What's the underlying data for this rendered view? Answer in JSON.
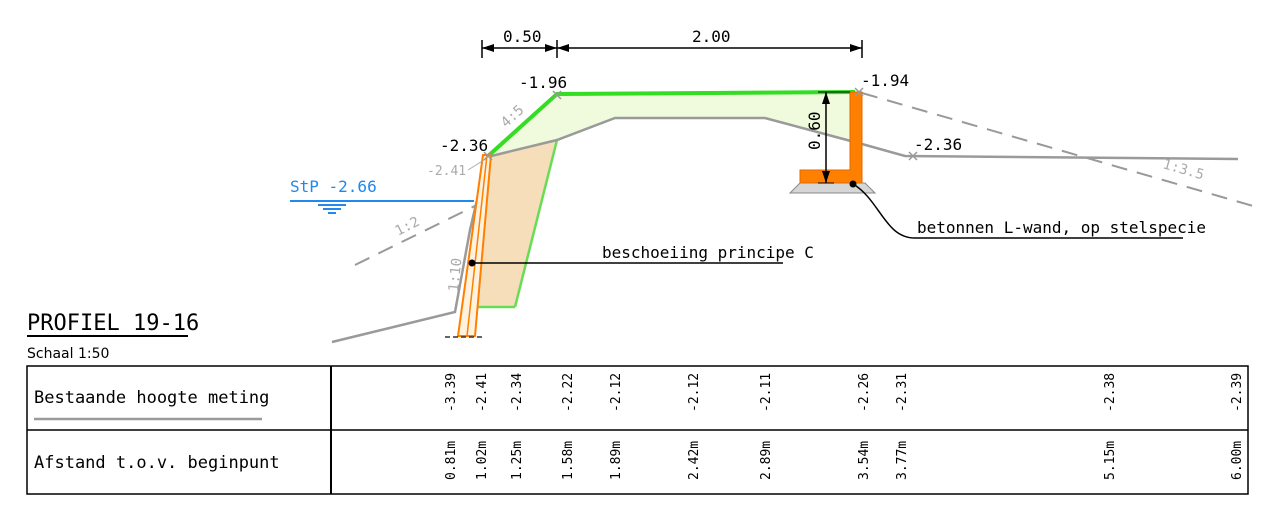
{
  "title": "PROFIEL 19-16",
  "scale": "Schaal 1:50",
  "colors": {
    "existing_ground": "#9a9a9a",
    "design_profile": "#33dd22",
    "wall": "#ff7f00",
    "water": "#2288ee",
    "fill_embankment": "#f5deb9",
    "fill_green": "#effbdc",
    "dash_slope": "#999999"
  },
  "dimensions": {
    "width_left": "0.50",
    "width_main": "2.00",
    "wall_height": "0.60"
  },
  "levels": {
    "crest_left": "-1.96",
    "crest_right": "-1.94",
    "sheet_top": "-2.36",
    "sheet_existing": "-2.41",
    "ground_right": "-2.36"
  },
  "water_level": "StP -2.66",
  "slopes": {
    "s45": "4:5",
    "s12": "1:2",
    "s110": "1:10",
    "s135": "1:3.5"
  },
  "labels": {
    "sheeting": "beschoeiing principe C",
    "wall": "betonnen L-wand, op stelspecie"
  },
  "table": {
    "row1_label": "Bestaande hoogte meting",
    "row2_label": "Afstand t.o.v. beginpunt",
    "heights": [
      "-3.39",
      "-2.41",
      "-2.34",
      "-2.22",
      "-2.12",
      "-2.12",
      "-2.11",
      "-2.26",
      "-2.31",
      "-2.38",
      "-2.39"
    ],
    "distances": [
      "0.81m",
      "1.02m",
      "1.25m",
      "1.58m",
      "1.89m",
      "2.42m",
      "2.89m",
      "3.54m",
      "3.77m",
      "5.15m",
      "6.00m"
    ]
  }
}
